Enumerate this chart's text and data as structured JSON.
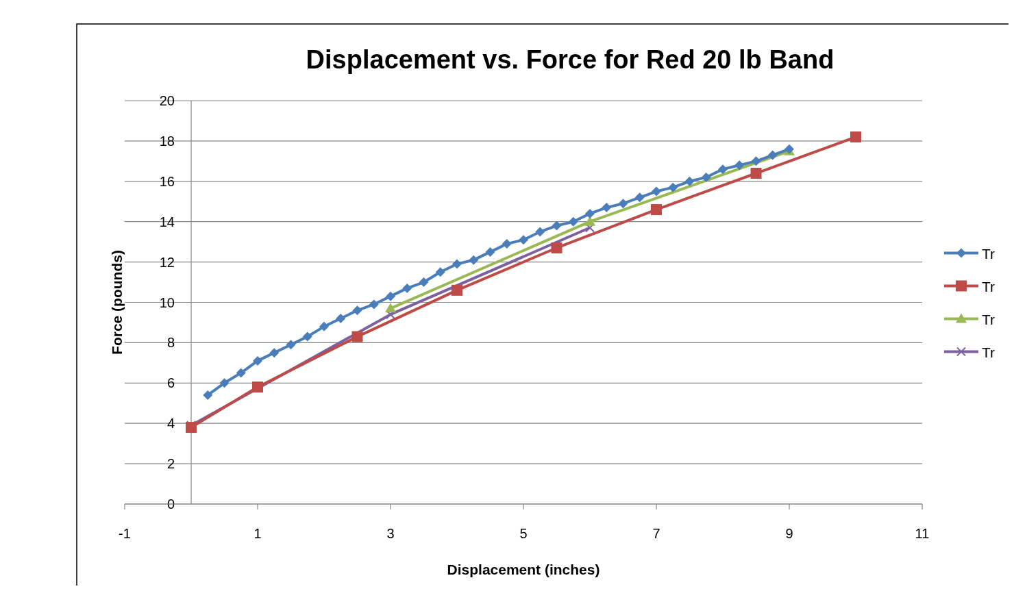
{
  "chart_data": {
    "type": "line",
    "title": "Displacement vs. Force for Red 20 lb Band",
    "xlabel": "Displacement (inches)",
    "ylabel": "Force (pounds)",
    "xlim": [
      -1,
      11
    ],
    "xticks": [
      -1,
      1,
      3,
      5,
      7,
      9,
      11
    ],
    "ylim": [
      0,
      20
    ],
    "yticks": [
      0,
      2,
      4,
      6,
      8,
      10,
      12,
      14,
      16,
      18,
      20
    ],
    "grid": "y",
    "legend": "right",
    "series": [
      {
        "name": "Tr",
        "color": "#4a7ebb",
        "marker": "diamond",
        "x": [
          0.25,
          0.5,
          0.75,
          1,
          1.25,
          1.5,
          1.75,
          2,
          2.25,
          2.5,
          2.75,
          3,
          3.25,
          3.5,
          3.75,
          4,
          4.25,
          4.5,
          4.75,
          5,
          5.25,
          5.5,
          5.75,
          6,
          6.25,
          6.5,
          6.75,
          7,
          7.25,
          7.5,
          7.75,
          8,
          8.25,
          8.5,
          8.75,
          9
        ],
        "values": [
          5.4,
          6.0,
          6.5,
          7.1,
          7.5,
          7.9,
          8.3,
          8.8,
          9.2,
          9.6,
          9.9,
          10.3,
          10.7,
          11.0,
          11.5,
          11.9,
          12.1,
          12.5,
          12.9,
          13.1,
          13.5,
          13.8,
          14.0,
          14.4,
          14.7,
          14.9,
          15.2,
          15.5,
          15.7,
          16.0,
          16.2,
          16.6,
          16.8,
          17.0,
          17.3,
          17.6
        ]
      },
      {
        "name": "Tr",
        "color": "#be4b48",
        "marker": "square",
        "x": [
          0,
          1,
          2.5,
          4,
          5.5,
          7,
          8.5,
          10
        ],
        "values": [
          3.8,
          5.8,
          8.3,
          10.6,
          12.7,
          14.6,
          16.4,
          18.2
        ]
      },
      {
        "name": "Tr",
        "color": "#98b954",
        "marker": "triangle",
        "x": [
          3,
          6,
          9
        ],
        "values": [
          9.7,
          14.0,
          17.5
        ]
      },
      {
        "name": "Tr",
        "color": "#7d60a0",
        "marker": "cross",
        "x": [
          0,
          3,
          6
        ],
        "values": [
          3.9,
          9.4,
          13.7
        ]
      }
    ]
  }
}
